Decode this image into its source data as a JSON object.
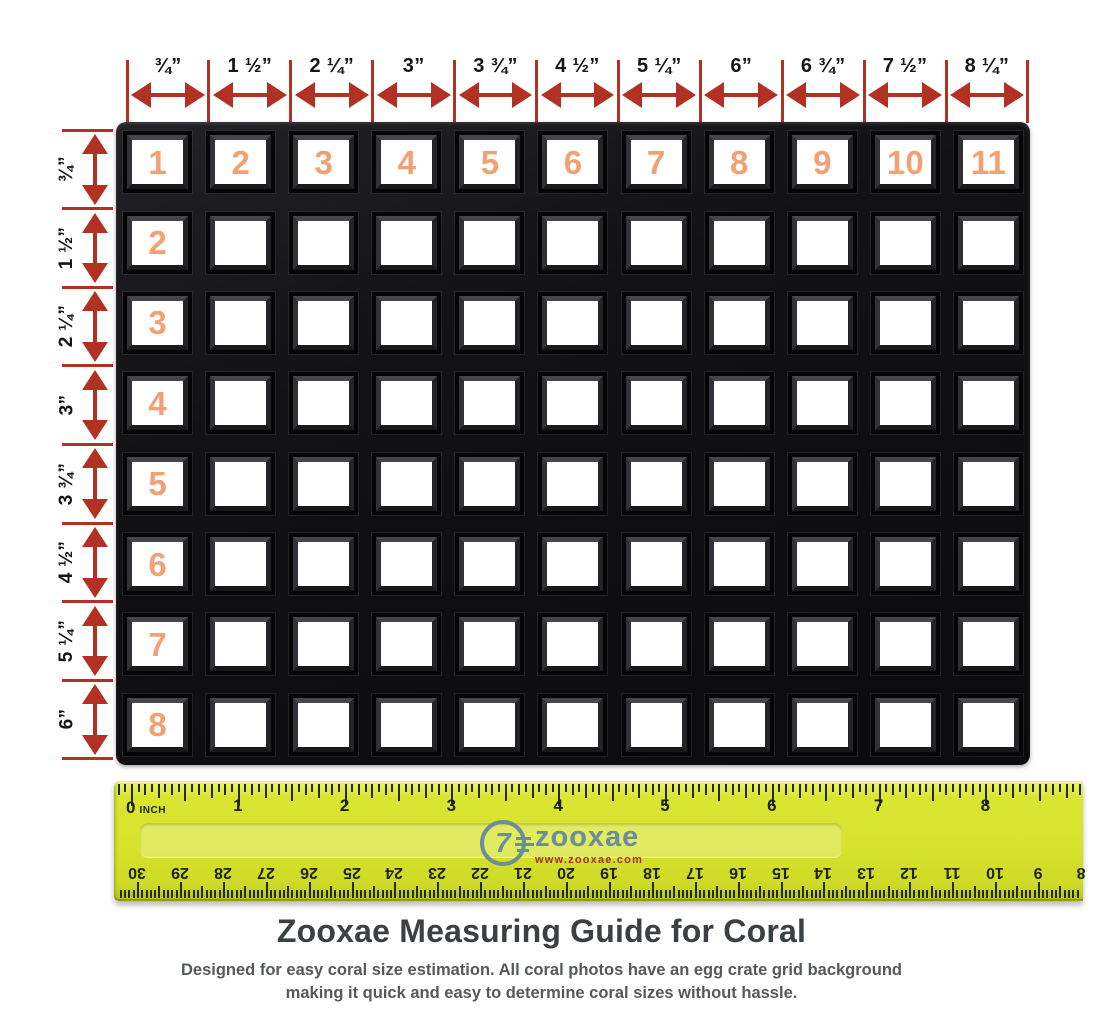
{
  "title": "Zooxae Measuring Guide for Coral",
  "subtitle": {
    "line1": "Designed for easy coral size estimation. All coral photos have an egg crate grid background",
    "line2": "making it quick and easy to determine coral sizes without hassle."
  },
  "colors": {
    "annotation_red": "#b23123",
    "cell_number_peach": "#f2a175",
    "ruler_yellow": "#d7e32c",
    "logo_blue": "#6b8d9d"
  },
  "top_scale": {
    "labels": [
      "¾”",
      "1 ½”",
      "2 ¼”",
      "3”",
      "3 ¾”",
      "4 ½”",
      "5 ¼”",
      "6”",
      "6 ¾”",
      "7 ½”",
      "8 ¼”"
    ]
  },
  "left_scale": {
    "labels": [
      "¾”",
      "1 ½”",
      "2 ¼”",
      "3”",
      "3 ¾”",
      "4 ½”",
      "5 ¼”",
      "6”"
    ]
  },
  "grid": {
    "rows": 8,
    "cols": 11,
    "column_numbers": [
      "1",
      "2",
      "3",
      "4",
      "5",
      "6",
      "7",
      "8",
      "9",
      "10",
      "11"
    ],
    "row_numbers": [
      "2",
      "3",
      "4",
      "5",
      "6",
      "7",
      "8"
    ]
  },
  "ruler": {
    "zero_label": "0",
    "unit_label": "INCH",
    "inch_numbers": [
      "1",
      "2",
      "3",
      "4",
      "5",
      "6",
      "7",
      "8"
    ],
    "cm_numbers": [
      "30",
      "29",
      "28",
      "27",
      "26",
      "25",
      "24",
      "23",
      "22",
      "21",
      "20",
      "19",
      "18",
      "17",
      "16",
      "15",
      "14",
      "13",
      "12",
      "11",
      "10",
      "9",
      "8"
    ],
    "logo": {
      "glyph": "7",
      "text": "zooxae",
      "url": "www.zooxae.com"
    }
  }
}
